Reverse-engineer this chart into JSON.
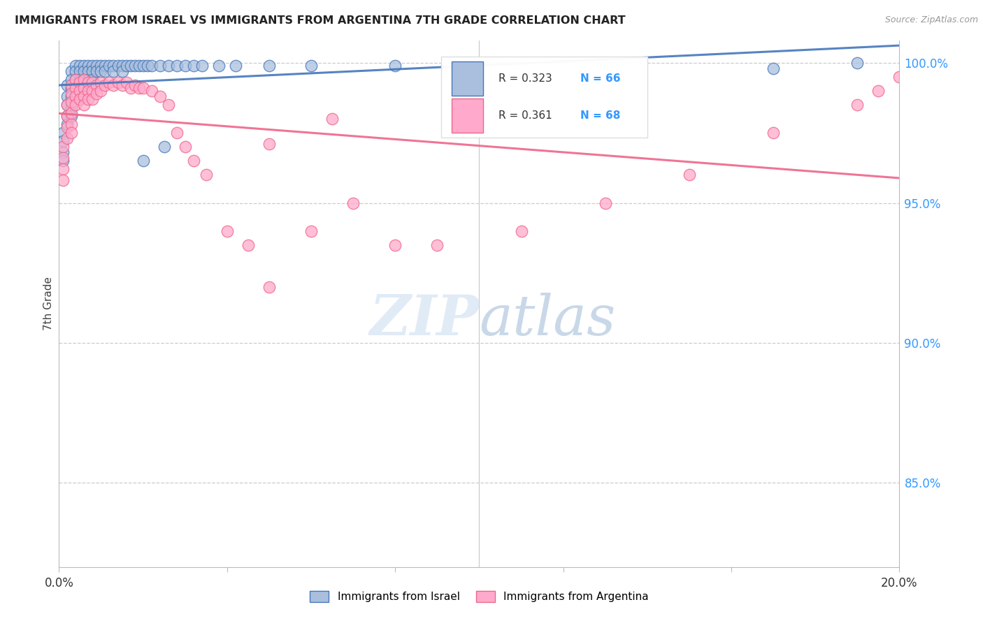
{
  "title": "IMMIGRANTS FROM ISRAEL VS IMMIGRANTS FROM ARGENTINA 7TH GRADE CORRELATION CHART",
  "source": "Source: ZipAtlas.com",
  "ylabel_left": "7th Grade",
  "ylabel_right_ticks": [
    1.0,
    0.95,
    0.9,
    0.85
  ],
  "ylabel_right_labels": [
    "100.0%",
    "95.0%",
    "90.0%",
    "85.0%"
  ],
  "r_israel": 0.323,
  "n_israel": 66,
  "r_argentina": 0.361,
  "n_argentina": 68,
  "israel_color": "#AABFDD",
  "argentina_color": "#FFAACC",
  "israel_line_color": "#4477BB",
  "argentina_line_color": "#EE6688",
  "legend_label_israel": "Immigrants from Israel",
  "legend_label_argentina": "Immigrants from Argentina",
  "xmin": 0.0,
  "xmax": 0.2,
  "ymin": 0.82,
  "ymax": 1.008,
  "israel_x": [
    0.001,
    0.001,
    0.001,
    0.001,
    0.002,
    0.002,
    0.002,
    0.002,
    0.002,
    0.003,
    0.003,
    0.003,
    0.003,
    0.003,
    0.003,
    0.004,
    0.004,
    0.004,
    0.004,
    0.005,
    0.005,
    0.005,
    0.006,
    0.006,
    0.006,
    0.006,
    0.007,
    0.007,
    0.007,
    0.008,
    0.008,
    0.008,
    0.009,
    0.009,
    0.01,
    0.01,
    0.011,
    0.011,
    0.012,
    0.013,
    0.013,
    0.014,
    0.015,
    0.015,
    0.016,
    0.017,
    0.018,
    0.019,
    0.02,
    0.021,
    0.022,
    0.024,
    0.026,
    0.028,
    0.03,
    0.032,
    0.034,
    0.038,
    0.042,
    0.05,
    0.06,
    0.08,
    0.02,
    0.025,
    0.17,
    0.19
  ],
  "israel_y": [
    0.975,
    0.972,
    0.968,
    0.965,
    0.992,
    0.988,
    0.985,
    0.981,
    0.978,
    0.997,
    0.994,
    0.991,
    0.988,
    0.984,
    0.981,
    0.999,
    0.997,
    0.994,
    0.991,
    0.999,
    0.997,
    0.994,
    0.999,
    0.997,
    0.994,
    0.991,
    0.999,
    0.997,
    0.994,
    0.999,
    0.997,
    0.994,
    0.999,
    0.997,
    0.999,
    0.997,
    0.999,
    0.997,
    0.999,
    0.999,
    0.997,
    0.999,
    0.999,
    0.997,
    0.999,
    0.999,
    0.999,
    0.999,
    0.999,
    0.999,
    0.999,
    0.999,
    0.999,
    0.999,
    0.999,
    0.999,
    0.999,
    0.999,
    0.999,
    0.999,
    0.999,
    0.999,
    0.965,
    0.97,
    0.998,
    1.0
  ],
  "argentina_x": [
    0.001,
    0.001,
    0.001,
    0.001,
    0.002,
    0.002,
    0.002,
    0.002,
    0.003,
    0.003,
    0.003,
    0.003,
    0.003,
    0.003,
    0.004,
    0.004,
    0.004,
    0.004,
    0.005,
    0.005,
    0.005,
    0.006,
    0.006,
    0.006,
    0.006,
    0.007,
    0.007,
    0.007,
    0.008,
    0.008,
    0.008,
    0.009,
    0.009,
    0.01,
    0.01,
    0.011,
    0.012,
    0.013,
    0.014,
    0.015,
    0.016,
    0.017,
    0.018,
    0.019,
    0.02,
    0.022,
    0.024,
    0.026,
    0.028,
    0.03,
    0.032,
    0.035,
    0.04,
    0.045,
    0.05,
    0.06,
    0.07,
    0.08,
    0.09,
    0.11,
    0.13,
    0.15,
    0.17,
    0.19,
    0.195,
    0.2,
    0.05,
    0.065
  ],
  "argentina_y": [
    0.97,
    0.966,
    0.962,
    0.958,
    0.985,
    0.981,
    0.977,
    0.973,
    0.992,
    0.989,
    0.986,
    0.982,
    0.978,
    0.975,
    0.994,
    0.991,
    0.988,
    0.985,
    0.993,
    0.99,
    0.987,
    0.994,
    0.991,
    0.988,
    0.985,
    0.993,
    0.99,
    0.987,
    0.993,
    0.99,
    0.987,
    0.992,
    0.989,
    0.993,
    0.99,
    0.992,
    0.993,
    0.992,
    0.993,
    0.992,
    0.993,
    0.991,
    0.992,
    0.991,
    0.991,
    0.99,
    0.988,
    0.985,
    0.975,
    0.97,
    0.965,
    0.96,
    0.94,
    0.935,
    0.92,
    0.94,
    0.95,
    0.935,
    0.935,
    0.94,
    0.95,
    0.96,
    0.975,
    0.985,
    0.99,
    0.995,
    0.971,
    0.98
  ]
}
